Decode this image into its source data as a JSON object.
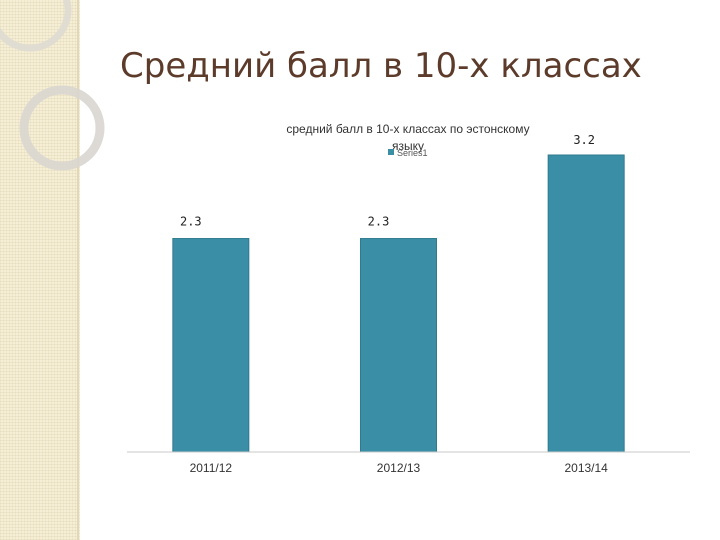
{
  "slide": {
    "title": "Средний балл в 10-х классах"
  },
  "colors": {
    "bar_fill": "#3a8fa6",
    "bar_edge": "#2f7a8e",
    "title_text": "#5c3b2a",
    "strip": "#f6efd6"
  },
  "chart_data": {
    "type": "bar",
    "title": "средний балл в 10-х классах по эстонскому языку",
    "categories": [
      "2011/12",
      "2012/13",
      "2013/14"
    ],
    "series": [
      {
        "name": "Series1",
        "values": [
          2.3,
          2.3,
          3.2
        ]
      }
    ],
    "data_labels": [
      "2.3",
      "2.3",
      "3.2"
    ],
    "ylim": [
      0,
      3.2
    ],
    "grid": false,
    "legend_position": "top-center",
    "xlabel": "",
    "ylabel": ""
  }
}
